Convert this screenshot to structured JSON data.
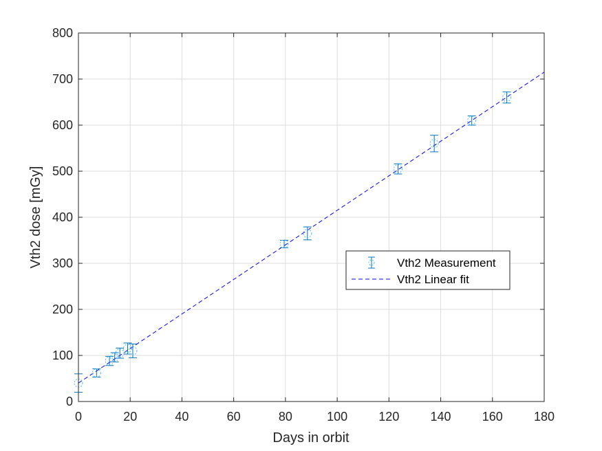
{
  "chart_data": {
    "type": "scatter",
    "xlabel": "Days in orbit",
    "ylabel": "Vth2 dose [mGy]",
    "xlim": [
      0,
      180
    ],
    "ylim": [
      0,
      800
    ],
    "xticks": [
      "0",
      "20",
      "40",
      "60",
      "80",
      "100",
      "120",
      "140",
      "160",
      "180"
    ],
    "yticks": [
      "0",
      "100",
      "200",
      "300",
      "400",
      "500",
      "600",
      "700",
      "800"
    ],
    "grid": true,
    "legend_position": "right",
    "series": [
      {
        "name": "Vth2 Measurement",
        "kind": "errorbar",
        "color": "#0072BD",
        "marker": "circle",
        "points": [
          {
            "x": 0,
            "y": 40,
            "err": 20
          },
          {
            "x": 7,
            "y": 62,
            "err": 9
          },
          {
            "x": 12,
            "y": 88,
            "err": 10
          },
          {
            "x": 14,
            "y": 96,
            "err": 10
          },
          {
            "x": 16,
            "y": 105,
            "err": 11
          },
          {
            "x": 19,
            "y": 115,
            "err": 12
          },
          {
            "x": 21,
            "y": 110,
            "err": 15
          },
          {
            "x": 79.5,
            "y": 342,
            "err": 8
          },
          {
            "x": 88.5,
            "y": 365,
            "err": 14
          },
          {
            "x": 123.5,
            "y": 505,
            "err": 11
          },
          {
            "x": 137.5,
            "y": 560,
            "err": 18
          },
          {
            "x": 152,
            "y": 610,
            "err": 10
          },
          {
            "x": 165.5,
            "y": 660,
            "err": 12
          }
        ]
      },
      {
        "name": "Vth2 Linear fit",
        "kind": "line",
        "color": "#0000FF",
        "dash": "dashed",
        "x": [
          0,
          180
        ],
        "y": [
          40,
          715
        ]
      }
    ]
  }
}
